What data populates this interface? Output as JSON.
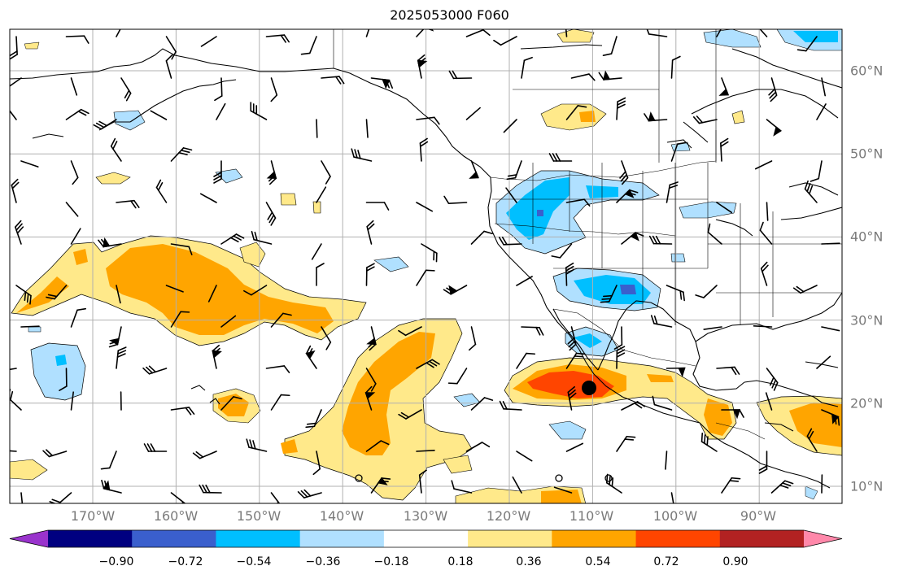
{
  "title": "2025053000 F060",
  "lon_ticks": [
    "170°W",
    "160°W",
    "150°W",
    "140°W",
    "130°W",
    "120°W",
    "110°W",
    "100°W",
    "90°W"
  ],
  "lat_ticks": [
    "60°N",
    "50°N",
    "40°N",
    "30°N",
    "20°N",
    "10°N"
  ],
  "colorbar": {
    "ticks": [
      "−0.90",
      "−0.72",
      "−0.54",
      "−0.36",
      "−0.18",
      "0.18",
      "0.36",
      "0.54",
      "0.72",
      "0.90"
    ],
    "colors": [
      "#9933cc",
      "#000080",
      "#3a5fcd",
      "#00bfff",
      "#b0e0ff",
      "#ffffff",
      "#ffe98a",
      "#ffa500",
      "#ff4500",
      "#b22222",
      "#ff88aa"
    ]
  },
  "chart_data": {
    "type": "map",
    "extent": {
      "lon": [
        -180,
        -80
      ],
      "lat": [
        8,
        65
      ]
    },
    "grid": true,
    "marker": {
      "lon": -110.5,
      "lat": 22,
      "symbol": "filled-circle"
    }
  }
}
